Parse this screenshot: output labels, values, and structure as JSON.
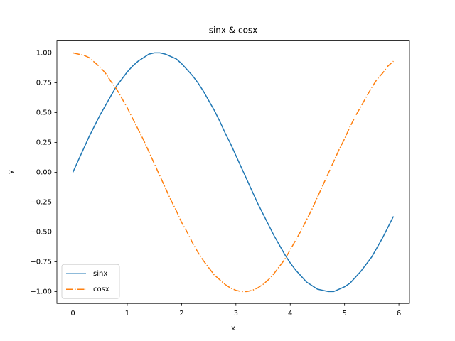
{
  "chart_data": {
    "type": "line",
    "title": "sinx & cosx",
    "x_label": "x",
    "y_label": "y",
    "x": [
      0,
      0.1,
      0.2,
      0.3,
      0.4,
      0.5,
      0.6,
      0.7,
      0.8,
      0.9,
      1.0,
      1.1,
      1.2,
      1.3,
      1.4,
      1.5,
      1.6,
      1.7,
      1.8,
      1.9,
      2.0,
      2.1,
      2.2,
      2.3,
      2.4,
      2.5,
      2.6,
      2.7,
      2.8,
      2.9,
      3.0,
      3.1,
      3.2,
      3.3,
      3.4,
      3.5,
      3.6,
      3.7,
      3.8,
      3.9,
      4.0,
      4.1,
      4.2,
      4.3,
      4.4,
      4.5,
      4.6,
      4.7,
      4.8,
      4.9,
      5.0,
      5.1,
      5.2,
      5.3,
      5.4,
      5.5,
      5.6,
      5.7,
      5.8,
      5.9
    ],
    "series": [
      {
        "name": "sinx",
        "color": "#1f77b4",
        "linestyle": "solid",
        "values": [
          0,
          0.1,
          0.2,
          0.3,
          0.39,
          0.48,
          0.56,
          0.64,
          0.72,
          0.78,
          0.84,
          0.89,
          0.93,
          0.96,
          0.99,
          1.0,
          1.0,
          0.99,
          0.97,
          0.95,
          0.91,
          0.86,
          0.81,
          0.75,
          0.68,
          0.6,
          0.52,
          0.43,
          0.33,
          0.24,
          0.14,
          0.04,
          -0.06,
          -0.16,
          -0.26,
          -0.35,
          -0.44,
          -0.53,
          -0.61,
          -0.69,
          -0.76,
          -0.82,
          -0.87,
          -0.92,
          -0.95,
          -0.98,
          -0.99,
          -1.0,
          -1.0,
          -0.98,
          -0.96,
          -0.93,
          -0.88,
          -0.83,
          -0.77,
          -0.71,
          -0.63,
          -0.55,
          -0.46,
          -0.37
        ]
      },
      {
        "name": "cosx",
        "color": "#ff7f0e",
        "linestyle": "dashdot",
        "values": [
          1.0,
          0.99,
          0.98,
          0.96,
          0.92,
          0.88,
          0.83,
          0.76,
          0.7,
          0.62,
          0.54,
          0.45,
          0.36,
          0.27,
          0.17,
          0.07,
          -0.03,
          -0.13,
          -0.23,
          -0.32,
          -0.42,
          -0.5,
          -0.59,
          -0.67,
          -0.74,
          -0.8,
          -0.86,
          -0.9,
          -0.94,
          -0.97,
          -0.99,
          -1.0,
          -1.0,
          -0.99,
          -0.97,
          -0.94,
          -0.9,
          -0.85,
          -0.79,
          -0.73,
          -0.65,
          -0.57,
          -0.49,
          -0.4,
          -0.31,
          -0.21,
          -0.11,
          -0.01,
          0.09,
          0.19,
          0.28,
          0.38,
          0.47,
          0.55,
          0.63,
          0.71,
          0.78,
          0.83,
          0.89,
          0.93
        ]
      }
    ],
    "xlim": [
      -0.295,
      6.195
    ],
    "xticks": [
      0,
      1,
      2,
      3,
      4,
      5,
      6
    ],
    "ylim": [
      -1.1,
      1.1
    ],
    "yticks": [
      {
        "value": -1,
        "label": "−1.00"
      },
      {
        "value": -0.75,
        "label": "−0.75"
      },
      {
        "value": -0.5,
        "label": "−0.50"
      },
      {
        "value": -0.25,
        "label": "−0.25"
      },
      {
        "value": 0,
        "label": "0.00"
      },
      {
        "value": 0.25,
        "label": "0.25"
      },
      {
        "value": 0.5,
        "label": "0.50"
      },
      {
        "value": 0.75,
        "label": "0.75"
      },
      {
        "value": 1,
        "label": "1.00"
      }
    ],
    "legend": "lower left",
    "grid": false
  }
}
